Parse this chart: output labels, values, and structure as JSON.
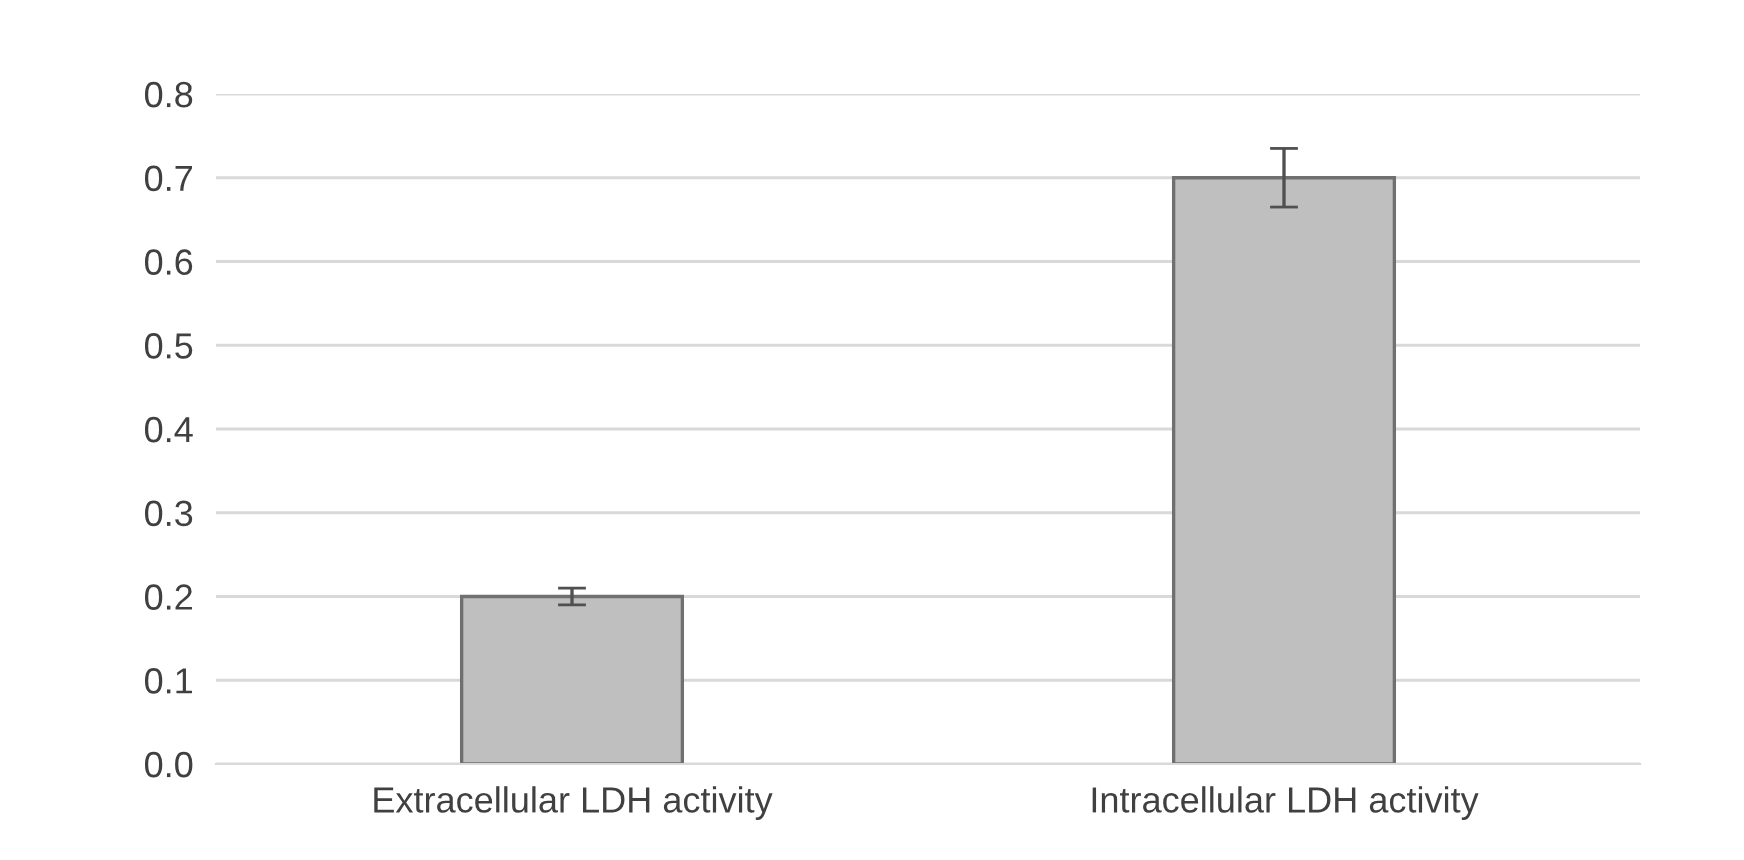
{
  "chart_data": {
    "type": "bar",
    "categories": [
      "Extracellular LDH activity",
      "Intracellular LDH activity"
    ],
    "values": [
      0.2,
      0.7
    ],
    "errors": [
      0.01,
      0.035
    ],
    "color": "#bfbfbf",
    "ylim": [
      0,
      0.8
    ],
    "yticks": [
      {
        "value": 0,
        "label": "0.0"
      },
      {
        "value": 0.1,
        "label": "0.1"
      },
      {
        "value": 0.2,
        "label": "0.2"
      },
      {
        "value": 0.3,
        "label": "0.3"
      },
      {
        "value": 0.4,
        "label": "0.4"
      },
      {
        "value": 0.5,
        "label": "0.5"
      },
      {
        "value": 0.6,
        "label": "0.6"
      },
      {
        "value": 0.7,
        "label": "0.7"
      },
      {
        "value": 0.8,
        "label": "0.8"
      }
    ],
    "grid": "y"
  }
}
